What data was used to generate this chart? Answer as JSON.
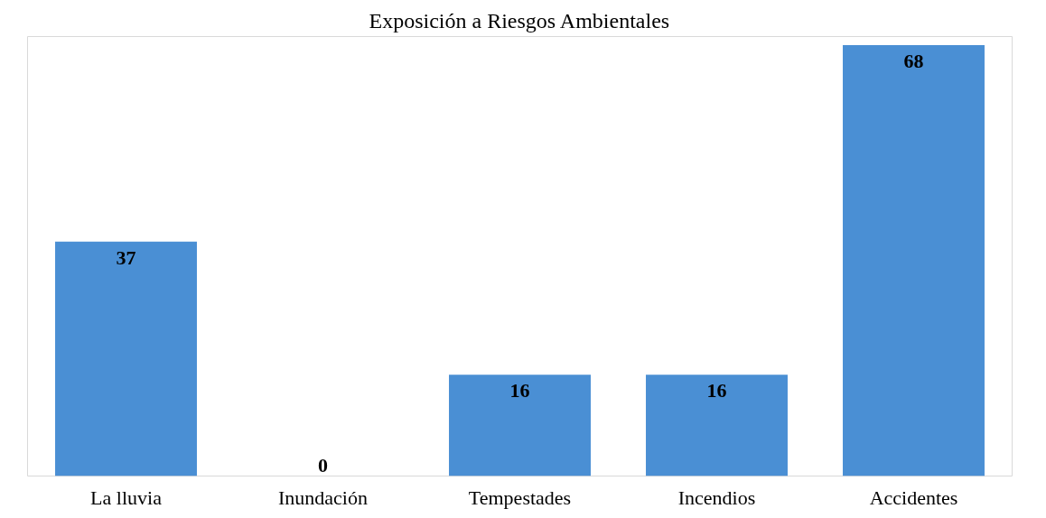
{
  "chart_data": {
    "type": "bar",
    "title": "Exposición a Riesgos Ambientales",
    "categories": [
      "La lluvia",
      "Inundación",
      "Tempestades",
      "Incendios",
      "Accidentes"
    ],
    "values": [
      37,
      0,
      16,
      16,
      68
    ],
    "color": "#4a8fd4",
    "data_labels": true,
    "grid": false
  }
}
